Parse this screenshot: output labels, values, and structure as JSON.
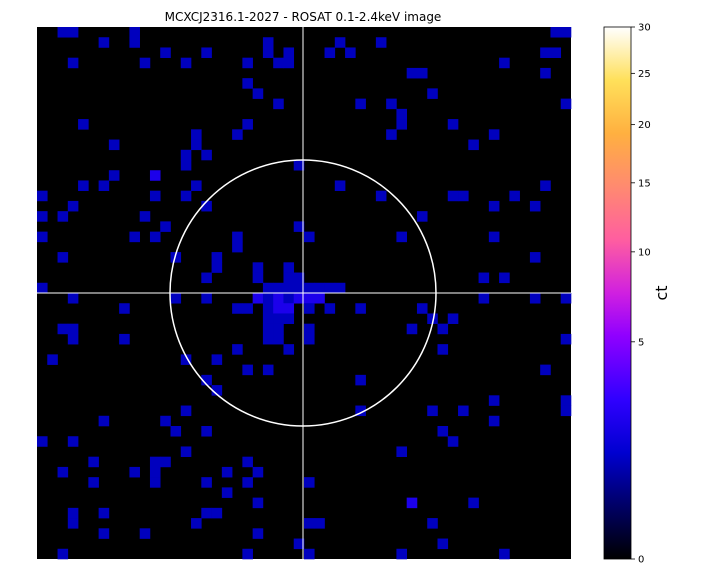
{
  "chart_data": {
    "type": "heatmap",
    "title": "MCXCJ2316.1-2027 -  ROSAT 0.1-2.4keV image",
    "colorbar": {
      "label": "ct",
      "scale": "sqrt",
      "range": [
        0,
        30
      ],
      "ticks": [
        0,
        5,
        10,
        15,
        20,
        25,
        30
      ],
      "colormap": "gnuplot2",
      "stops": [
        {
          "v": 0.0,
          "c": "#000000"
        },
        {
          "v": 0.1,
          "c": "#000066"
        },
        {
          "v": 0.2,
          "c": "#0000d0"
        },
        {
          "v": 0.3,
          "c": "#3000ff"
        },
        {
          "v": 0.42,
          "c": "#9000ff"
        },
        {
          "v": 0.5,
          "c": "#d020e0"
        },
        {
          "v": 0.6,
          "c": "#ff5ea0"
        },
        {
          "v": 0.7,
          "c": "#ff8a70"
        },
        {
          "v": 0.8,
          "c": "#ffb040"
        },
        {
          "v": 0.9,
          "c": "#ffe05a"
        },
        {
          "v": 1.0,
          "c": "#ffffff"
        }
      ]
    },
    "grid": {
      "cols": 52,
      "rows": 52
    },
    "background_color": "#000000",
    "crosshair_color": "#ffffff",
    "aperture_circle_color": "#ffffff",
    "pixels": [
      [
        0,
        2,
        1
      ],
      [
        0,
        3,
        1
      ],
      [
        0,
        9,
        1
      ],
      [
        0,
        50,
        1
      ],
      [
        0,
        51,
        1
      ],
      [
        1,
        6,
        1
      ],
      [
        1,
        9,
        1
      ],
      [
        1,
        22,
        1
      ],
      [
        1,
        29,
        1
      ],
      [
        1,
        33,
        1
      ],
      [
        2,
        12,
        1
      ],
      [
        2,
        16,
        1
      ],
      [
        2,
        22,
        1
      ],
      [
        2,
        24,
        1
      ],
      [
        2,
        28,
        1
      ],
      [
        2,
        30,
        1
      ],
      [
        2,
        49,
        1
      ],
      [
        2,
        50,
        1
      ],
      [
        3,
        3,
        1
      ],
      [
        3,
        10,
        1
      ],
      [
        3,
        14,
        1
      ],
      [
        3,
        20,
        1
      ],
      [
        3,
        23,
        1
      ],
      [
        3,
        24,
        1
      ],
      [
        3,
        45,
        1
      ],
      [
        4,
        36,
        1
      ],
      [
        4,
        37,
        1
      ],
      [
        4,
        49,
        1
      ],
      [
        5,
        20,
        1
      ],
      [
        6,
        21,
        1
      ],
      [
        6,
        38,
        1
      ],
      [
        7,
        23,
        1
      ],
      [
        7,
        31,
        1
      ],
      [
        7,
        34,
        1
      ],
      [
        7,
        51,
        1
      ],
      [
        8,
        35,
        1
      ],
      [
        9,
        4,
        1
      ],
      [
        9,
        20,
        1
      ],
      [
        9,
        35,
        1
      ],
      [
        9,
        40,
        1
      ],
      [
        10,
        15,
        1
      ],
      [
        10,
        19,
        1
      ],
      [
        10,
        34,
        1
      ],
      [
        10,
        44,
        1
      ],
      [
        11,
        7,
        1
      ],
      [
        11,
        15,
        1
      ],
      [
        11,
        42,
        1
      ],
      [
        12,
        14,
        1
      ],
      [
        12,
        16,
        1
      ],
      [
        13,
        14,
        1
      ],
      [
        13,
        25,
        1
      ],
      [
        14,
        7,
        1
      ],
      [
        14,
        11,
        2
      ],
      [
        15,
        4,
        1
      ],
      [
        15,
        6,
        1
      ],
      [
        15,
        15,
        1
      ],
      [
        15,
        29,
        1
      ],
      [
        15,
        49,
        1
      ],
      [
        16,
        0,
        1
      ],
      [
        16,
        11,
        1
      ],
      [
        16,
        14,
        1
      ],
      [
        16,
        33,
        1
      ],
      [
        16,
        40,
        1
      ],
      [
        16,
        41,
        1
      ],
      [
        16,
        46,
        1
      ],
      [
        17,
        3,
        1
      ],
      [
        17,
        16,
        1
      ],
      [
        17,
        44,
        1
      ],
      [
        17,
        48,
        1
      ],
      [
        18,
        0,
        1
      ],
      [
        18,
        2,
        1
      ],
      [
        18,
        10,
        1
      ],
      [
        18,
        37,
        1
      ],
      [
        19,
        12,
        1
      ],
      [
        19,
        25,
        1
      ],
      [
        20,
        0,
        1
      ],
      [
        20,
        9,
        1
      ],
      [
        20,
        11,
        1
      ],
      [
        20,
        19,
        1
      ],
      [
        20,
        26,
        1
      ],
      [
        20,
        35,
        1
      ],
      [
        20,
        44,
        1
      ],
      [
        21,
        19,
        1
      ],
      [
        22,
        2,
        1
      ],
      [
        22,
        13,
        1
      ],
      [
        22,
        17,
        1
      ],
      [
        22,
        48,
        1
      ],
      [
        23,
        17,
        1
      ],
      [
        23,
        21,
        1
      ],
      [
        23,
        24,
        1
      ],
      [
        24,
        16,
        1
      ],
      [
        24,
        21,
        1
      ],
      [
        24,
        24,
        1
      ],
      [
        24,
        25,
        1
      ],
      [
        24,
        43,
        1
      ],
      [
        24,
        45,
        1
      ],
      [
        25,
        0,
        1
      ],
      [
        25,
        22,
        1
      ],
      [
        25,
        23,
        1
      ],
      [
        25,
        24,
        1
      ],
      [
        25,
        25,
        1
      ],
      [
        25,
        26,
        1
      ],
      [
        25,
        27,
        1
      ],
      [
        25,
        28,
        1
      ],
      [
        25,
        29,
        1
      ],
      [
        26,
        3,
        1
      ],
      [
        26,
        13,
        1
      ],
      [
        26,
        16,
        1
      ],
      [
        26,
        21,
        2
      ],
      [
        26,
        22,
        1
      ],
      [
        26,
        23,
        2
      ],
      [
        26,
        24,
        1
      ],
      [
        26,
        25,
        2
      ],
      [
        26,
        26,
        2
      ],
      [
        26,
        27,
        2
      ],
      [
        26,
        43,
        1
      ],
      [
        26,
        48,
        1
      ],
      [
        26,
        51,
        1
      ],
      [
        27,
        8,
        1
      ],
      [
        27,
        19,
        1
      ],
      [
        27,
        20,
        1
      ],
      [
        27,
        22,
        1
      ],
      [
        27,
        23,
        2
      ],
      [
        27,
        24,
        2
      ],
      [
        27,
        26,
        1
      ],
      [
        27,
        28,
        1
      ],
      [
        27,
        31,
        1
      ],
      [
        27,
        37,
        1
      ],
      [
        28,
        22,
        1
      ],
      [
        28,
        23,
        1
      ],
      [
        28,
        24,
        1
      ],
      [
        28,
        38,
        1
      ],
      [
        28,
        40,
        1
      ],
      [
        29,
        2,
        1
      ],
      [
        29,
        3,
        1
      ],
      [
        29,
        22,
        1
      ],
      [
        29,
        23,
        1
      ],
      [
        29,
        26,
        1
      ],
      [
        29,
        36,
        1
      ],
      [
        29,
        39,
        1
      ],
      [
        30,
        3,
        1
      ],
      [
        30,
        8,
        1
      ],
      [
        30,
        22,
        1
      ],
      [
        30,
        23,
        1
      ],
      [
        30,
        26,
        1
      ],
      [
        30,
        51,
        1
      ],
      [
        31,
        19,
        1
      ],
      [
        31,
        24,
        1
      ],
      [
        31,
        39,
        1
      ],
      [
        32,
        1,
        1
      ],
      [
        32,
        14,
        1
      ],
      [
        32,
        17,
        1
      ],
      [
        33,
        20,
        1
      ],
      [
        33,
        22,
        1
      ],
      [
        33,
        49,
        1
      ],
      [
        34,
        16,
        1
      ],
      [
        34,
        31,
        1
      ],
      [
        35,
        17,
        1
      ],
      [
        36,
        44,
        1
      ],
      [
        36,
        51,
        1
      ],
      [
        37,
        14,
        1
      ],
      [
        37,
        31,
        1
      ],
      [
        37,
        38,
        1
      ],
      [
        37,
        41,
        1
      ],
      [
        37,
        51,
        1
      ],
      [
        38,
        6,
        1
      ],
      [
        38,
        12,
        1
      ],
      [
        38,
        44,
        1
      ],
      [
        39,
        13,
        1
      ],
      [
        39,
        16,
        1
      ],
      [
        39,
        39,
        1
      ],
      [
        40,
        0,
        1
      ],
      [
        40,
        3,
        1
      ],
      [
        40,
        40,
        1
      ],
      [
        41,
        14,
        1
      ],
      [
        41,
        35,
        1
      ],
      [
        42,
        5,
        1
      ],
      [
        42,
        11,
        1
      ],
      [
        42,
        12,
        1
      ],
      [
        42,
        20,
        1
      ],
      [
        43,
        2,
        1
      ],
      [
        43,
        9,
        1
      ],
      [
        43,
        11,
        1
      ],
      [
        43,
        18,
        1
      ],
      [
        43,
        21,
        1
      ],
      [
        44,
        5,
        1
      ],
      [
        44,
        11,
        1
      ],
      [
        44,
        16,
        1
      ],
      [
        44,
        20,
        1
      ],
      [
        44,
        26,
        1
      ],
      [
        45,
        18,
        1
      ],
      [
        46,
        21,
        1
      ],
      [
        46,
        36,
        2
      ],
      [
        46,
        42,
        1
      ],
      [
        47,
        3,
        1
      ],
      [
        47,
        6,
        1
      ],
      [
        47,
        16,
        1
      ],
      [
        47,
        17,
        1
      ],
      [
        48,
        3,
        1
      ],
      [
        48,
        15,
        1
      ],
      [
        48,
        26,
        1
      ],
      [
        48,
        27,
        1
      ],
      [
        48,
        38,
        1
      ],
      [
        49,
        6,
        1
      ],
      [
        49,
        10,
        1
      ],
      [
        49,
        21,
        1
      ],
      [
        50,
        25,
        1
      ],
      [
        50,
        39,
        1
      ],
      [
        51,
        2,
        1
      ],
      [
        51,
        20,
        1
      ],
      [
        51,
        26,
        1
      ],
      [
        51,
        35,
        1
      ],
      [
        51,
        45,
        1
      ]
    ]
  }
}
